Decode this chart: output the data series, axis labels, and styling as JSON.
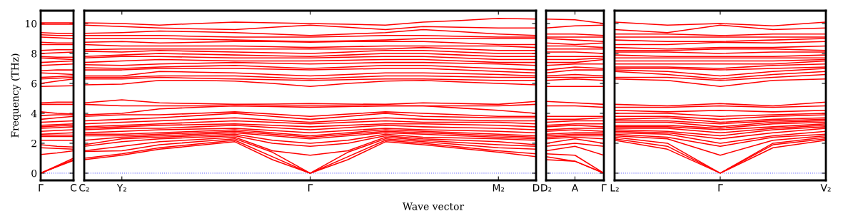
{
  "chart_data": [
    {
      "type": "line",
      "ylabel": "Frequency (THz)",
      "categories": [
        "Γ",
        null,
        "C"
      ],
      "ylim": [
        -0.48,
        10.86
      ],
      "yticks": [
        0,
        2,
        4,
        6,
        8,
        10
      ],
      "grid": false,
      "ref_lines": [
        {
          "axis": "y",
          "value": 0,
          "label": null,
          "color": "#6a6aff",
          "line_style": "dotted"
        }
      ],
      "series": [
        {
          "color": "#ff0000",
          "values": [
            0,
            0.43,
            0.85
          ]
        },
        {
          "color": "#ff0000",
          "values": [
            0,
            0.45,
            0.9
          ]
        },
        {
          "color": "#ff0000",
          "values": [
            0,
            0.5,
            1.0
          ]
        },
        {
          "color": "#ff0000",
          "values": [
            1.25,
            1.35,
            1.5
          ]
        },
        {
          "color": "#ff0000",
          "values": [
            1.7,
            1.65,
            1.6
          ]
        },
        {
          "color": "#ff0000",
          "values": [
            1.9,
            1.8,
            1.75
          ]
        },
        {
          "color": "#ff0000",
          "values": [
            2.2,
            2.2,
            2.2
          ]
        },
        {
          "color": "#ff0000",
          "values": [
            2.45,
            2.45,
            2.45
          ]
        },
        {
          "color": "#ff0000",
          "values": [
            2.55,
            2.55,
            2.55
          ]
        },
        {
          "color": "#ff0000",
          "values": [
            2.6,
            2.65,
            2.7
          ]
        },
        {
          "color": "#ff0000",
          "values": [
            2.8,
            2.85,
            2.9
          ]
        },
        {
          "color": "#ff0000",
          "values": [
            3.0,
            3.05,
            3.1
          ]
        },
        {
          "color": "#ff0000",
          "values": [
            3.1,
            3.15,
            3.2
          ]
        },
        {
          "color": "#ff0000",
          "values": [
            3.2,
            3.25,
            3.3
          ]
        },
        {
          "color": "#ff0000",
          "values": [
            3.4,
            3.45,
            3.5
          ]
        },
        {
          "color": "#ff0000",
          "values": [
            3.6,
            3.7,
            3.8
          ]
        },
        {
          "color": "#ff0000",
          "values": [
            3.85,
            3.9,
            3.9
          ]
        },
        {
          "color": "#ff0000",
          "values": [
            4.1,
            4.0,
            3.95
          ]
        },
        {
          "color": "#ff0000",
          "values": [
            4.6,
            4.6,
            4.6
          ]
        },
        {
          "color": "#ff0000",
          "values": [
            4.7,
            4.75,
            4.75
          ]
        },
        {
          "color": "#ff0000",
          "values": [
            5.8,
            5.82,
            5.85
          ]
        },
        {
          "color": "#ff0000",
          "values": [
            6.0,
            6.15,
            6.3
          ]
        },
        {
          "color": "#ff0000",
          "values": [
            6.3,
            6.35,
            6.4
          ]
        },
        {
          "color": "#ff0000",
          "values": [
            6.4,
            6.45,
            6.5
          ]
        },
        {
          "color": "#ff0000",
          "values": [
            6.7,
            6.65,
            6.6
          ]
        },
        {
          "color": "#ff0000",
          "values": [
            6.85,
            6.9,
            6.9
          ]
        },
        {
          "color": "#ff0000",
          "values": [
            7.2,
            7.25,
            7.3
          ]
        },
        {
          "color": "#ff0000",
          "values": [
            7.4,
            7.45,
            7.5
          ]
        },
        {
          "color": "#ff0000",
          "values": [
            7.7,
            7.65,
            7.6
          ]
        },
        {
          "color": "#ff0000",
          "values": [
            7.8,
            7.75,
            7.75
          ]
        },
        {
          "color": "#ff0000",
          "values": [
            8.0,
            8.05,
            8.1
          ]
        },
        {
          "color": "#ff0000",
          "values": [
            8.2,
            8.25,
            8.25
          ]
        },
        {
          "color": "#ff0000",
          "values": [
            8.6,
            8.6,
            8.6
          ]
        },
        {
          "color": "#ff0000",
          "values": [
            8.75,
            8.7,
            8.7
          ]
        },
        {
          "color": "#ff0000",
          "values": [
            9.1,
            9.05,
            9.0
          ]
        },
        {
          "color": "#ff0000",
          "values": [
            9.25,
            9.2,
            9.2
          ]
        },
        {
          "color": "#ff0000",
          "values": [
            9.4,
            9.35,
            9.35
          ]
        },
        {
          "color": "#ff0000",
          "values": [
            9.95,
            9.95,
            9.95
          ]
        },
        {
          "color": "#ff0000",
          "values": [
            10.05,
            10.05,
            10.05
          ]
        }
      ]
    },
    {
      "type": "line",
      "xlabel": "Wave vector",
      "categories": [
        "C₂",
        "Y₂",
        null,
        null,
        null,
        null,
        "Γ",
        null,
        null,
        null,
        null,
        "M₂",
        "D"
      ],
      "ylim": [
        -0.48,
        10.86
      ],
      "yticks": [
        0,
        2,
        4,
        6,
        8,
        10
      ],
      "tick_labels": "x",
      "grid": false,
      "ref_lines": [
        {
          "axis": "y",
          "value": 0,
          "label": null,
          "color": "#6a6aff",
          "line_style": "dotted"
        }
      ],
      "series": [
        {
          "color": "#ff0000",
          "values": [
            0.9,
            1.2,
            1.6,
            1.85,
            2.1,
            0.9,
            0,
            0.9,
            2.1,
            1.9,
            1.65,
            1.4,
            1.1
          ]
        },
        {
          "color": "#ff0000",
          "values": [
            1.0,
            1.3,
            1.7,
            1.95,
            2.2,
            1.1,
            0,
            1.1,
            2.2,
            2.0,
            1.75,
            1.5,
            1.3
          ]
        },
        {
          "color": "#ff0000",
          "values": [
            1.45,
            1.5,
            1.9,
            2.1,
            2.3,
            1.4,
            0,
            1.4,
            2.3,
            2.1,
            1.9,
            1.7,
            1.6
          ]
        },
        {
          "color": "#ff0000",
          "values": [
            1.5,
            1.8,
            2.1,
            2.25,
            2.4,
            1.5,
            1.2,
            1.5,
            2.4,
            2.2,
            2.05,
            1.9,
            1.8
          ]
        },
        {
          "color": "#ff0000",
          "values": [
            1.8,
            2.1,
            2.3,
            2.4,
            2.5,
            2.0,
            1.8,
            2.0,
            2.5,
            2.3,
            2.2,
            2.1,
            1.9
          ]
        },
        {
          "color": "#ff0000",
          "values": [
            1.9,
            2.3,
            2.4,
            2.5,
            2.6,
            2.2,
            2.0,
            2.2,
            2.6,
            2.4,
            2.35,
            2.3,
            2.2
          ]
        },
        {
          "color": "#ff0000",
          "values": [
            2.2,
            2.4,
            2.5,
            2.6,
            2.7,
            2.5,
            2.3,
            2.5,
            2.7,
            2.6,
            2.5,
            2.4,
            2.3
          ]
        },
        {
          "color": "#ff0000",
          "values": [
            2.5,
            2.5,
            2.6,
            2.7,
            2.8,
            2.6,
            2.4,
            2.6,
            2.8,
            2.7,
            2.6,
            2.5,
            2.4
          ]
        },
        {
          "color": "#ff0000",
          "values": [
            2.6,
            2.6,
            2.7,
            2.8,
            2.9,
            2.7,
            2.5,
            2.7,
            2.9,
            2.8,
            2.7,
            2.6,
            2.5
          ]
        },
        {
          "color": "#ff0000",
          "values": [
            2.7,
            2.8,
            2.9,
            2.95,
            3.0,
            2.85,
            2.7,
            2.85,
            3.0,
            2.9,
            2.85,
            2.8,
            2.7
          ]
        },
        {
          "color": "#ff0000",
          "values": [
            2.9,
            3.0,
            3.0,
            3.1,
            3.2,
            3.05,
            2.9,
            3.05,
            3.2,
            3.1,
            3.05,
            3.0,
            2.9
          ]
        },
        {
          "color": "#ff0000",
          "values": [
            3.0,
            3.1,
            3.2,
            3.25,
            3.3,
            3.2,
            3.1,
            3.2,
            3.3,
            3.3,
            3.25,
            3.2,
            3.1
          ]
        },
        {
          "color": "#ff0000",
          "values": [
            3.1,
            3.2,
            3.3,
            3.4,
            3.5,
            3.4,
            3.3,
            3.4,
            3.5,
            3.4,
            3.4,
            3.4,
            3.3
          ]
        },
        {
          "color": "#ff0000",
          "values": [
            3.3,
            3.4,
            3.5,
            3.6,
            3.7,
            3.55,
            3.4,
            3.55,
            3.7,
            3.6,
            3.55,
            3.5,
            3.5
          ]
        },
        {
          "color": "#ff0000",
          "values": [
            3.5,
            3.6,
            3.7,
            3.85,
            4.0,
            3.8,
            3.6,
            3.8,
            4.0,
            3.8,
            3.75,
            3.7,
            3.7
          ]
        },
        {
          "color": "#ff0000",
          "values": [
            3.8,
            3.9,
            3.9,
            4.0,
            4.1,
            3.95,
            3.8,
            3.95,
            4.1,
            4.0,
            3.9,
            3.8,
            3.8
          ]
        },
        {
          "color": "#ff0000",
          "values": [
            3.9,
            4.0,
            4.3,
            4.4,
            4.5,
            4.45,
            4.4,
            4.45,
            4.5,
            4.5,
            4.35,
            4.2,
            4.0
          ]
        },
        {
          "color": "#ff0000",
          "values": [
            4.6,
            4.5,
            4.5,
            4.5,
            4.5,
            4.5,
            4.5,
            4.5,
            4.5,
            4.5,
            4.5,
            4.5,
            4.6
          ]
        },
        {
          "color": "#ff0000",
          "values": [
            4.7,
            4.9,
            4.7,
            4.65,
            4.6,
            4.62,
            4.65,
            4.62,
            4.6,
            4.7,
            4.65,
            4.6,
            4.8
          ]
        },
        {
          "color": "#ff0000",
          "values": [
            5.9,
            5.95,
            6.2,
            6.2,
            6.15,
            6.0,
            5.8,
            6.0,
            6.15,
            6.2,
            6.1,
            6.0,
            5.9
          ]
        },
        {
          "color": "#ff0000",
          "values": [
            6.3,
            6.3,
            6.4,
            6.35,
            6.3,
            6.25,
            6.2,
            6.25,
            6.3,
            6.3,
            6.25,
            6.2,
            6.2
          ]
        },
        {
          "color": "#ff0000",
          "values": [
            6.4,
            6.4,
            6.5,
            6.5,
            6.5,
            6.4,
            6.3,
            6.4,
            6.5,
            6.5,
            6.45,
            6.4,
            6.4
          ]
        },
        {
          "color": "#ff0000",
          "values": [
            6.5,
            6.5,
            6.8,
            6.75,
            6.7,
            6.6,
            6.5,
            6.6,
            6.7,
            6.7,
            6.65,
            6.6,
            6.5
          ]
        },
        {
          "color": "#ff0000",
          "values": [
            6.9,
            6.9,
            7.0,
            7.0,
            7.0,
            6.95,
            6.9,
            6.95,
            7.0,
            7.0,
            6.9,
            6.8,
            6.7
          ]
        },
        {
          "color": "#ff0000",
          "values": [
            7.05,
            7.0,
            7.1,
            7.15,
            7.2,
            7.1,
            7.0,
            7.1,
            7.2,
            7.2,
            7.1,
            7.0,
            6.9
          ]
        },
        {
          "color": "#ff0000",
          "values": [
            7.25,
            7.2,
            7.3,
            7.35,
            7.4,
            7.35,
            7.3,
            7.35,
            7.4,
            7.4,
            7.35,
            7.3,
            7.2
          ]
        },
        {
          "color": "#ff0000",
          "values": [
            7.4,
            7.5,
            7.6,
            7.55,
            7.5,
            7.5,
            7.5,
            7.55,
            7.6,
            7.6,
            7.5,
            7.4,
            7.4
          ]
        },
        {
          "color": "#ff0000",
          "values": [
            7.7,
            7.8,
            7.8,
            7.75,
            7.7,
            7.7,
            7.7,
            7.75,
            7.8,
            7.8,
            7.7,
            7.6,
            7.6
          ]
        },
        {
          "color": "#ff0000",
          "values": [
            7.8,
            7.9,
            8.0,
            7.95,
            7.9,
            7.85,
            7.8,
            7.9,
            8.0,
            8.0,
            7.9,
            7.8,
            7.8
          ]
        },
        {
          "color": "#ff0000",
          "values": [
            8.15,
            8.1,
            8.2,
            8.15,
            8.1,
            8.05,
            8.0,
            8.1,
            8.2,
            8.2,
            8.1,
            8.0,
            8.0
          ]
        },
        {
          "color": "#ff0000",
          "values": [
            8.25,
            8.3,
            8.3,
            8.3,
            8.3,
            8.3,
            8.3,
            8.3,
            8.3,
            8.4,
            8.3,
            8.2,
            8.2
          ]
        },
        {
          "color": "#ff0000",
          "values": [
            8.6,
            8.5,
            8.5,
            8.5,
            8.5,
            8.45,
            8.4,
            8.45,
            8.5,
            8.5,
            8.5,
            8.5,
            8.4
          ]
        },
        {
          "color": "#ff0000",
          "values": [
            8.75,
            8.8,
            8.7,
            8.75,
            8.8,
            8.8,
            8.75,
            8.8,
            8.8,
            8.8,
            8.7,
            8.6,
            8.6
          ]
        },
        {
          "color": "#ff0000",
          "values": [
            9.0,
            9.0,
            9.0,
            8.95,
            8.9,
            8.85,
            8.8,
            8.85,
            8.9,
            9.0,
            9.0,
            9.0,
            9.0
          ]
        },
        {
          "color": "#ff0000",
          "values": [
            9.2,
            9.2,
            9.2,
            9.15,
            9.1,
            9.1,
            9.1,
            9.15,
            9.2,
            9.2,
            9.15,
            9.1,
            9.1
          ]
        },
        {
          "color": "#ff0000",
          "values": [
            9.35,
            9.4,
            9.5,
            9.45,
            9.4,
            9.3,
            9.2,
            9.3,
            9.4,
            9.6,
            9.45,
            9.3,
            9.2
          ]
        },
        {
          "color": "#ff0000",
          "values": [
            9.9,
            9.8,
            9.7,
            9.65,
            9.6,
            9.75,
            9.9,
            9.75,
            9.6,
            9.8,
            9.75,
            9.7,
            9.7
          ]
        },
        {
          "color": "#ff0000",
          "values": [
            10.05,
            10.0,
            9.9,
            10.0,
            10.1,
            10.05,
            10.0,
            9.95,
            9.9,
            10.1,
            10.2,
            10.35,
            10.3
          ]
        }
      ]
    },
    {
      "type": "line",
      "categories": [
        "D₂",
        "A",
        "Γ"
      ],
      "ylim": [
        -0.48,
        10.86
      ],
      "yticks": [
        0,
        2,
        4,
        6,
        8,
        10
      ],
      "tick_labels": "x",
      "grid": false,
      "ref_lines": [
        {
          "axis": "y",
          "value": 0,
          "label": null,
          "color": "#6a6aff",
          "line_style": "dotted"
        }
      ],
      "series": [
        {
          "color": "#ff0000",
          "values": [
            0.9,
            0.8,
            0
          ]
        },
        {
          "color": "#ff0000",
          "values": [
            1.1,
            0.8,
            0
          ]
        },
        {
          "color": "#ff0000",
          "values": [
            1.3,
            1.2,
            0
          ]
        },
        {
          "color": "#ff0000",
          "values": [
            1.5,
            1.8,
            1.2
          ]
        },
        {
          "color": "#ff0000",
          "values": [
            1.8,
            2.0,
            1.8
          ]
        },
        {
          "color": "#ff0000",
          "values": [
            2.0,
            2.3,
            2.0
          ]
        },
        {
          "color": "#ff0000",
          "values": [
            2.3,
            2.4,
            2.3
          ]
        },
        {
          "color": "#ff0000",
          "values": [
            2.4,
            2.5,
            2.5
          ]
        },
        {
          "color": "#ff0000",
          "values": [
            2.5,
            2.6,
            2.6
          ]
        },
        {
          "color": "#ff0000",
          "values": [
            2.6,
            2.7,
            2.7
          ]
        },
        {
          "color": "#ff0000",
          "values": [
            2.8,
            2.9,
            2.8
          ]
        },
        {
          "color": "#ff0000",
          "values": [
            2.9,
            3.0,
            3.0
          ]
        },
        {
          "color": "#ff0000",
          "values": [
            3.1,
            3.2,
            3.1
          ]
        },
        {
          "color": "#ff0000",
          "values": [
            3.2,
            3.3,
            3.3
          ]
        },
        {
          "color": "#ff0000",
          "values": [
            3.4,
            3.5,
            3.5
          ]
        },
        {
          "color": "#ff0000",
          "values": [
            3.6,
            3.6,
            3.7
          ]
        },
        {
          "color": "#ff0000",
          "values": [
            3.8,
            3.8,
            3.8
          ]
        },
        {
          "color": "#ff0000",
          "values": [
            4.5,
            4.5,
            4.4
          ]
        },
        {
          "color": "#ff0000",
          "values": [
            4.8,
            4.7,
            4.6
          ]
        },
        {
          "color": "#ff0000",
          "values": [
            5.8,
            5.8,
            5.8
          ]
        },
        {
          "color": "#ff0000",
          "values": [
            6.2,
            6.3,
            6.2
          ]
        },
        {
          "color": "#ff0000",
          "values": [
            6.4,
            6.4,
            6.4
          ]
        },
        {
          "color": "#ff0000",
          "values": [
            6.5,
            6.6,
            6.5
          ]
        },
        {
          "color": "#ff0000",
          "values": [
            6.7,
            6.9,
            6.9
          ]
        },
        {
          "color": "#ff0000",
          "values": [
            6.9,
            7.1,
            7.0
          ]
        },
        {
          "color": "#ff0000",
          "values": [
            7.2,
            7.3,
            7.3
          ]
        },
        {
          "color": "#ff0000",
          "values": [
            7.4,
            7.4,
            7.6
          ]
        },
        {
          "color": "#ff0000",
          "values": [
            7.6,
            7.6,
            7.7
          ]
        },
        {
          "color": "#ff0000",
          "values": [
            7.8,
            7.8,
            7.8
          ]
        },
        {
          "color": "#ff0000",
          "values": [
            8.1,
            8.1,
            8.0
          ]
        },
        {
          "color": "#ff0000",
          "values": [
            8.3,
            8.3,
            8.3
          ]
        },
        {
          "color": "#ff0000",
          "values": [
            8.5,
            8.5,
            8.4
          ]
        },
        {
          "color": "#ff0000",
          "values": [
            8.7,
            8.6,
            8.7
          ]
        },
        {
          "color": "#ff0000",
          "values": [
            9.0,
            8.9,
            8.8
          ]
        },
        {
          "color": "#ff0000",
          "values": [
            9.1,
            9.1,
            9.1
          ]
        },
        {
          "color": "#ff0000",
          "values": [
            9.3,
            9.3,
            9.2
          ]
        },
        {
          "color": "#ff0000",
          "values": [
            9.7,
            9.85,
            9.9
          ]
        },
        {
          "color": "#ff0000",
          "values": [
            10.3,
            10.25,
            10.0
          ]
        }
      ]
    },
    {
      "type": "line",
      "categories": [
        "L₂",
        null,
        "Γ",
        null,
        "V₂"
      ],
      "ylim": [
        -0.48,
        10.86
      ],
      "yticks": [
        0,
        2,
        4,
        6,
        8,
        10
      ],
      "tick_labels": "x",
      "grid": false,
      "ref_lines": [
        {
          "axis": "y",
          "value": 0,
          "label": null,
          "color": "#6a6aff",
          "line_style": "dotted"
        }
      ],
      "series": [
        {
          "color": "#ff0000",
          "values": [
            2.2,
            1.6,
            0,
            1.7,
            2.2
          ]
        },
        {
          "color": "#ff0000",
          "values": [
            2.3,
            1.8,
            0,
            1.9,
            2.3
          ]
        },
        {
          "color": "#ff0000",
          "values": [
            2.4,
            2.0,
            0,
            2.0,
            2.4
          ]
        },
        {
          "color": "#ff0000",
          "values": [
            2.5,
            2.3,
            1.2,
            2.2,
            2.5
          ]
        },
        {
          "color": "#ff0000",
          "values": [
            2.6,
            2.4,
            1.8,
            2.4,
            2.6
          ]
        },
        {
          "color": "#ff0000",
          "values": [
            2.7,
            2.6,
            2.0,
            2.5,
            2.8
          ]
        },
        {
          "color": "#ff0000",
          "values": [
            2.8,
            2.7,
            2.3,
            2.7,
            3.0
          ]
        },
        {
          "color": "#ff0000",
          "values": [
            2.9,
            2.8,
            2.5,
            2.9,
            3.1
          ]
        },
        {
          "color": "#ff0000",
          "values": [
            3.0,
            3.0,
            2.7,
            3.0,
            3.2
          ]
        },
        {
          "color": "#ff0000",
          "values": [
            3.1,
            3.1,
            2.9,
            3.1,
            3.3
          ]
        },
        {
          "color": "#ff0000",
          "values": [
            3.2,
            3.2,
            3.0,
            3.3,
            3.4
          ]
        },
        {
          "color": "#ff0000",
          "values": [
            3.4,
            3.4,
            3.1,
            3.4,
            3.5
          ]
        },
        {
          "color": "#ff0000",
          "values": [
            3.5,
            3.5,
            3.3,
            3.5,
            3.6
          ]
        },
        {
          "color": "#ff0000",
          "values": [
            3.6,
            3.7,
            3.4,
            3.6,
            3.7
          ]
        },
        {
          "color": "#ff0000",
          "values": [
            3.8,
            3.8,
            3.6,
            3.8,
            3.9
          ]
        },
        {
          "color": "#ff0000",
          "values": [
            4.0,
            4.0,
            3.8,
            3.9,
            4.0
          ]
        },
        {
          "color": "#ff0000",
          "values": [
            4.2,
            4.1,
            4.2,
            4.1,
            4.2
          ]
        },
        {
          "color": "#ff0000",
          "values": [
            4.4,
            4.4,
            4.5,
            4.4,
            4.5
          ]
        },
        {
          "color": "#ff0000",
          "values": [
            4.6,
            4.5,
            4.65,
            4.5,
            4.75
          ]
        },
        {
          "color": "#ff0000",
          "values": [
            6.3,
            6.2,
            5.8,
            6.2,
            6.3
          ]
        },
        {
          "color": "#ff0000",
          "values": [
            6.4,
            6.4,
            6.2,
            6.4,
            6.6
          ]
        },
        {
          "color": "#ff0000",
          "values": [
            6.8,
            6.6,
            6.3,
            6.6,
            6.8
          ]
        },
        {
          "color": "#ff0000",
          "values": [
            6.9,
            6.8,
            6.5,
            6.8,
            7.0
          ]
        },
        {
          "color": "#ff0000",
          "values": [
            7.0,
            7.0,
            6.9,
            7.0,
            7.1
          ]
        },
        {
          "color": "#ff0000",
          "values": [
            7.1,
            7.1,
            7.0,
            7.2,
            7.3
          ]
        },
        {
          "color": "#ff0000",
          "values": [
            7.3,
            7.3,
            7.3,
            7.3,
            7.5
          ]
        },
        {
          "color": "#ff0000",
          "values": [
            7.5,
            7.5,
            7.5,
            7.5,
            7.6
          ]
        },
        {
          "color": "#ff0000",
          "values": [
            7.7,
            7.7,
            7.7,
            7.7,
            7.7
          ]
        },
        {
          "color": "#ff0000",
          "values": [
            7.9,
            7.8,
            7.8,
            7.8,
            7.9
          ]
        },
        {
          "color": "#ff0000",
          "values": [
            8.1,
            8.1,
            8.0,
            8.1,
            8.1
          ]
        },
        {
          "color": "#ff0000",
          "values": [
            8.2,
            8.2,
            8.3,
            8.3,
            8.2
          ]
        },
        {
          "color": "#ff0000",
          "values": [
            8.4,
            8.3,
            8.4,
            8.4,
            8.5
          ]
        },
        {
          "color": "#ff0000",
          "values": [
            8.6,
            8.6,
            8.75,
            8.7,
            8.8
          ]
        },
        {
          "color": "#ff0000",
          "values": [
            8.9,
            8.8,
            8.8,
            8.9,
            9.0
          ]
        },
        {
          "color": "#ff0000",
          "values": [
            9.1,
            9.1,
            9.1,
            9.1,
            9.1
          ]
        },
        {
          "color": "#ff0000",
          "values": [
            9.3,
            9.3,
            9.2,
            9.3,
            9.3
          ]
        },
        {
          "color": "#ff0000",
          "values": [
            9.6,
            9.4,
            9.9,
            9.6,
            9.7
          ]
        },
        {
          "color": "#ff0000",
          "values": [
            10.1,
            9.9,
            10.0,
            9.85,
            10.1
          ]
        }
      ]
    }
  ]
}
